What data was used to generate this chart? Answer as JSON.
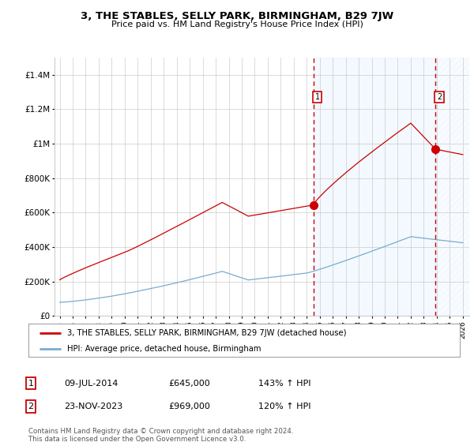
{
  "title": "3, THE STABLES, SELLY PARK, BIRMINGHAM, B29 7JW",
  "subtitle": "Price paid vs. HM Land Registry's House Price Index (HPI)",
  "ylim": [
    0,
    1500000
  ],
  "yticks": [
    0,
    200000,
    400000,
    600000,
    800000,
    1000000,
    1200000,
    1400000
  ],
  "ytick_labels": [
    "£0",
    "£200K",
    "£400K",
    "£600K",
    "£800K",
    "£1M",
    "£1.2M",
    "£1.4M"
  ],
  "sale1_year": 2014.54,
  "sale1_value": 645000,
  "sale2_year": 2023.9,
  "sale2_value": 969000,
  "red_line_color": "#cc0000",
  "blue_line_color": "#7aabcc",
  "shaded_color": "#ddeeff",
  "grid_color": "#cccccc",
  "bg_color": "#ffffff",
  "legend_label1": "3, THE STABLES, SELLY PARK, BIRMINGHAM, B29 7JW (detached house)",
  "legend_label2": "HPI: Average price, detached house, Birmingham",
  "marker1_date_str": "09-JUL-2014",
  "marker1_price_str": "£645,000",
  "marker1_hpi_str": "143% ↑ HPI",
  "marker2_date_str": "23-NOV-2023",
  "marker2_price_str": "£969,000",
  "marker2_hpi_str": "120% ↑ HPI",
  "footer": "Contains HM Land Registry data © Crown copyright and database right 2024.\nThis data is licensed under the Open Government Licence v3.0."
}
